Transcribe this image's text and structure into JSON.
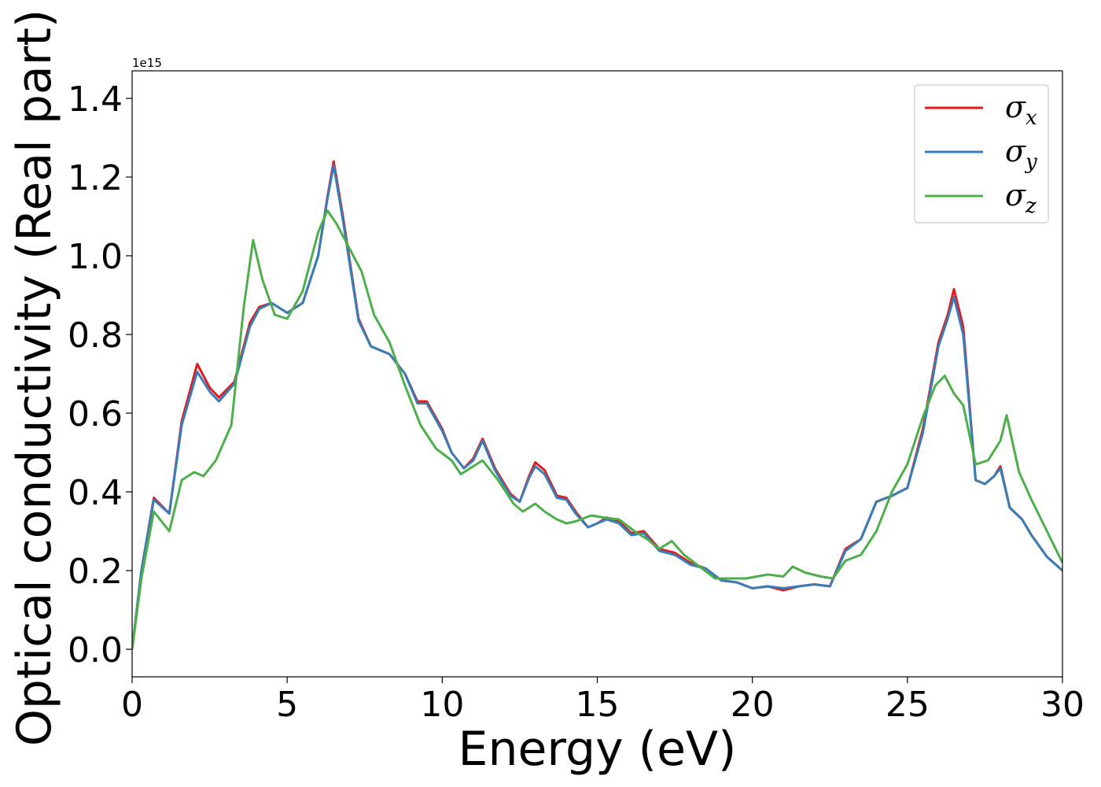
{
  "chart_data": {
    "type": "line",
    "xlabel": "Energy (eV)",
    "ylabel": "Optical conductivity (Real part)",
    "y_offset_label": "1e15",
    "xlim": [
      0,
      30
    ],
    "ylim": [
      -0.07,
      1.47
    ],
    "xticks": [
      0,
      5,
      10,
      15,
      20,
      25,
      30
    ],
    "xtick_labels": [
      "0",
      "5",
      "10",
      "15",
      "20",
      "25",
      "30"
    ],
    "yticks": [
      0.0,
      0.2,
      0.4,
      0.6,
      0.8,
      1.0,
      1.2,
      1.4
    ],
    "ytick_labels": [
      "0.0",
      "0.2",
      "0.4",
      "0.6",
      "0.8",
      "1.0",
      "1.2",
      "1.4"
    ],
    "grid": false,
    "legend_position": "top-right",
    "series": [
      {
        "name": "σx",
        "label_base": "σ",
        "label_sub": "x",
        "color": "#e41a1c",
        "x": [
          0,
          0.3,
          0.7,
          1.2,
          1.6,
          2.1,
          2.5,
          2.8,
          3.3,
          3.8,
          4.1,
          4.5,
          5.0,
          5.5,
          6.0,
          6.3,
          6.5,
          6.8,
          7.3,
          7.7,
          8.3,
          8.8,
          9.2,
          9.5,
          10.0,
          10.3,
          10.7,
          11.0,
          11.3,
          11.7,
          12.2,
          12.5,
          12.8,
          13.0,
          13.3,
          13.7,
          14.0,
          14.3,
          14.7,
          15.0,
          15.3,
          15.7,
          16.1,
          16.5,
          17.0,
          17.5,
          18.0,
          18.5,
          19.0,
          19.5,
          20.0,
          20.5,
          21.0,
          21.5,
          22.0,
          22.5,
          23.0,
          23.5,
          24.0,
          24.5,
          25.0,
          25.5,
          26.0,
          26.3,
          26.5,
          26.8,
          27.2,
          27.5,
          27.8,
          28.0,
          28.3,
          28.7,
          29.0,
          29.5,
          30.0
        ],
        "y": [
          0.0,
          0.2,
          0.385,
          0.345,
          0.58,
          0.725,
          0.665,
          0.64,
          0.68,
          0.83,
          0.87,
          0.88,
          0.855,
          0.88,
          1.0,
          1.15,
          1.24,
          1.1,
          0.84,
          0.77,
          0.75,
          0.7,
          0.63,
          0.63,
          0.56,
          0.5,
          0.46,
          0.485,
          0.535,
          0.46,
          0.395,
          0.375,
          0.44,
          0.475,
          0.455,
          0.39,
          0.385,
          0.35,
          0.31,
          0.32,
          0.335,
          0.325,
          0.295,
          0.3,
          0.255,
          0.245,
          0.22,
          0.205,
          0.175,
          0.17,
          0.155,
          0.16,
          0.15,
          0.16,
          0.165,
          0.16,
          0.255,
          0.28,
          0.375,
          0.39,
          0.41,
          0.56,
          0.78,
          0.85,
          0.915,
          0.82,
          0.43,
          0.42,
          0.44,
          0.465,
          0.36,
          0.33,
          0.29,
          0.235,
          0.2
        ]
      },
      {
        "name": "σy",
        "label_base": "σ",
        "label_sub": "y",
        "color": "#377eb8",
        "x": [
          0,
          0.3,
          0.7,
          1.2,
          1.6,
          2.1,
          2.5,
          2.8,
          3.3,
          3.8,
          4.1,
          4.5,
          5.0,
          5.5,
          6.0,
          6.3,
          6.5,
          6.8,
          7.3,
          7.7,
          8.3,
          8.8,
          9.2,
          9.5,
          10.0,
          10.3,
          10.7,
          11.0,
          11.3,
          11.7,
          12.2,
          12.5,
          12.8,
          13.0,
          13.3,
          13.7,
          14.0,
          14.3,
          14.7,
          15.0,
          15.3,
          15.7,
          16.1,
          16.5,
          17.0,
          17.5,
          18.0,
          18.5,
          19.0,
          19.5,
          20.0,
          20.5,
          21.0,
          21.5,
          22.0,
          22.5,
          23.0,
          23.5,
          24.0,
          24.5,
          25.0,
          25.5,
          26.0,
          26.3,
          26.5,
          26.8,
          27.2,
          27.5,
          27.8,
          28.0,
          28.3,
          28.7,
          29.0,
          29.5,
          30.0
        ],
        "y": [
          0.0,
          0.2,
          0.38,
          0.345,
          0.57,
          0.705,
          0.655,
          0.63,
          0.675,
          0.82,
          0.865,
          0.88,
          0.855,
          0.88,
          1.0,
          1.145,
          1.23,
          1.09,
          0.835,
          0.77,
          0.75,
          0.7,
          0.625,
          0.625,
          0.555,
          0.5,
          0.46,
          0.48,
          0.53,
          0.455,
          0.39,
          0.375,
          0.435,
          0.465,
          0.445,
          0.385,
          0.38,
          0.345,
          0.31,
          0.32,
          0.33,
          0.32,
          0.29,
          0.295,
          0.25,
          0.24,
          0.215,
          0.205,
          0.175,
          0.17,
          0.155,
          0.16,
          0.155,
          0.16,
          0.165,
          0.16,
          0.25,
          0.28,
          0.375,
          0.39,
          0.41,
          0.55,
          0.77,
          0.84,
          0.895,
          0.8,
          0.43,
          0.42,
          0.44,
          0.46,
          0.36,
          0.33,
          0.29,
          0.235,
          0.2
        ]
      },
      {
        "name": "σz",
        "label_base": "σ",
        "label_sub": "z",
        "color": "#4daf4a",
        "x": [
          0,
          0.3,
          0.7,
          1.2,
          1.6,
          2.0,
          2.3,
          2.7,
          3.2,
          3.6,
          3.9,
          4.2,
          4.6,
          5.0,
          5.5,
          6.0,
          6.3,
          6.6,
          7.0,
          7.4,
          7.8,
          8.3,
          8.8,
          9.3,
          9.8,
          10.3,
          10.6,
          11.0,
          11.3,
          11.8,
          12.3,
          12.6,
          12.8,
          13.0,
          13.3,
          13.7,
          14.0,
          14.3,
          14.8,
          15.2,
          15.7,
          16.2,
          16.6,
          17.0,
          17.4,
          17.8,
          18.3,
          18.8,
          19.3,
          19.8,
          20.5,
          21.0,
          21.3,
          21.7,
          22.2,
          22.6,
          23.0,
          23.5,
          24.0,
          24.5,
          25.0,
          25.5,
          25.9,
          26.2,
          26.5,
          26.8,
          27.2,
          27.6,
          28.0,
          28.2,
          28.6,
          29.0,
          29.5,
          30.0
        ],
        "y": [
          0.0,
          0.18,
          0.35,
          0.3,
          0.43,
          0.45,
          0.44,
          0.48,
          0.57,
          0.87,
          1.04,
          0.94,
          0.85,
          0.84,
          0.91,
          1.06,
          1.115,
          1.08,
          1.02,
          0.96,
          0.85,
          0.78,
          0.67,
          0.57,
          0.51,
          0.48,
          0.445,
          0.465,
          0.48,
          0.43,
          0.37,
          0.35,
          0.36,
          0.37,
          0.35,
          0.33,
          0.32,
          0.325,
          0.34,
          0.335,
          0.33,
          0.3,
          0.28,
          0.255,
          0.275,
          0.24,
          0.21,
          0.18,
          0.18,
          0.18,
          0.19,
          0.185,
          0.21,
          0.195,
          0.185,
          0.18,
          0.225,
          0.24,
          0.3,
          0.4,
          0.47,
          0.59,
          0.67,
          0.695,
          0.65,
          0.62,
          0.47,
          0.48,
          0.53,
          0.595,
          0.45,
          0.38,
          0.3,
          0.22
        ]
      }
    ]
  }
}
